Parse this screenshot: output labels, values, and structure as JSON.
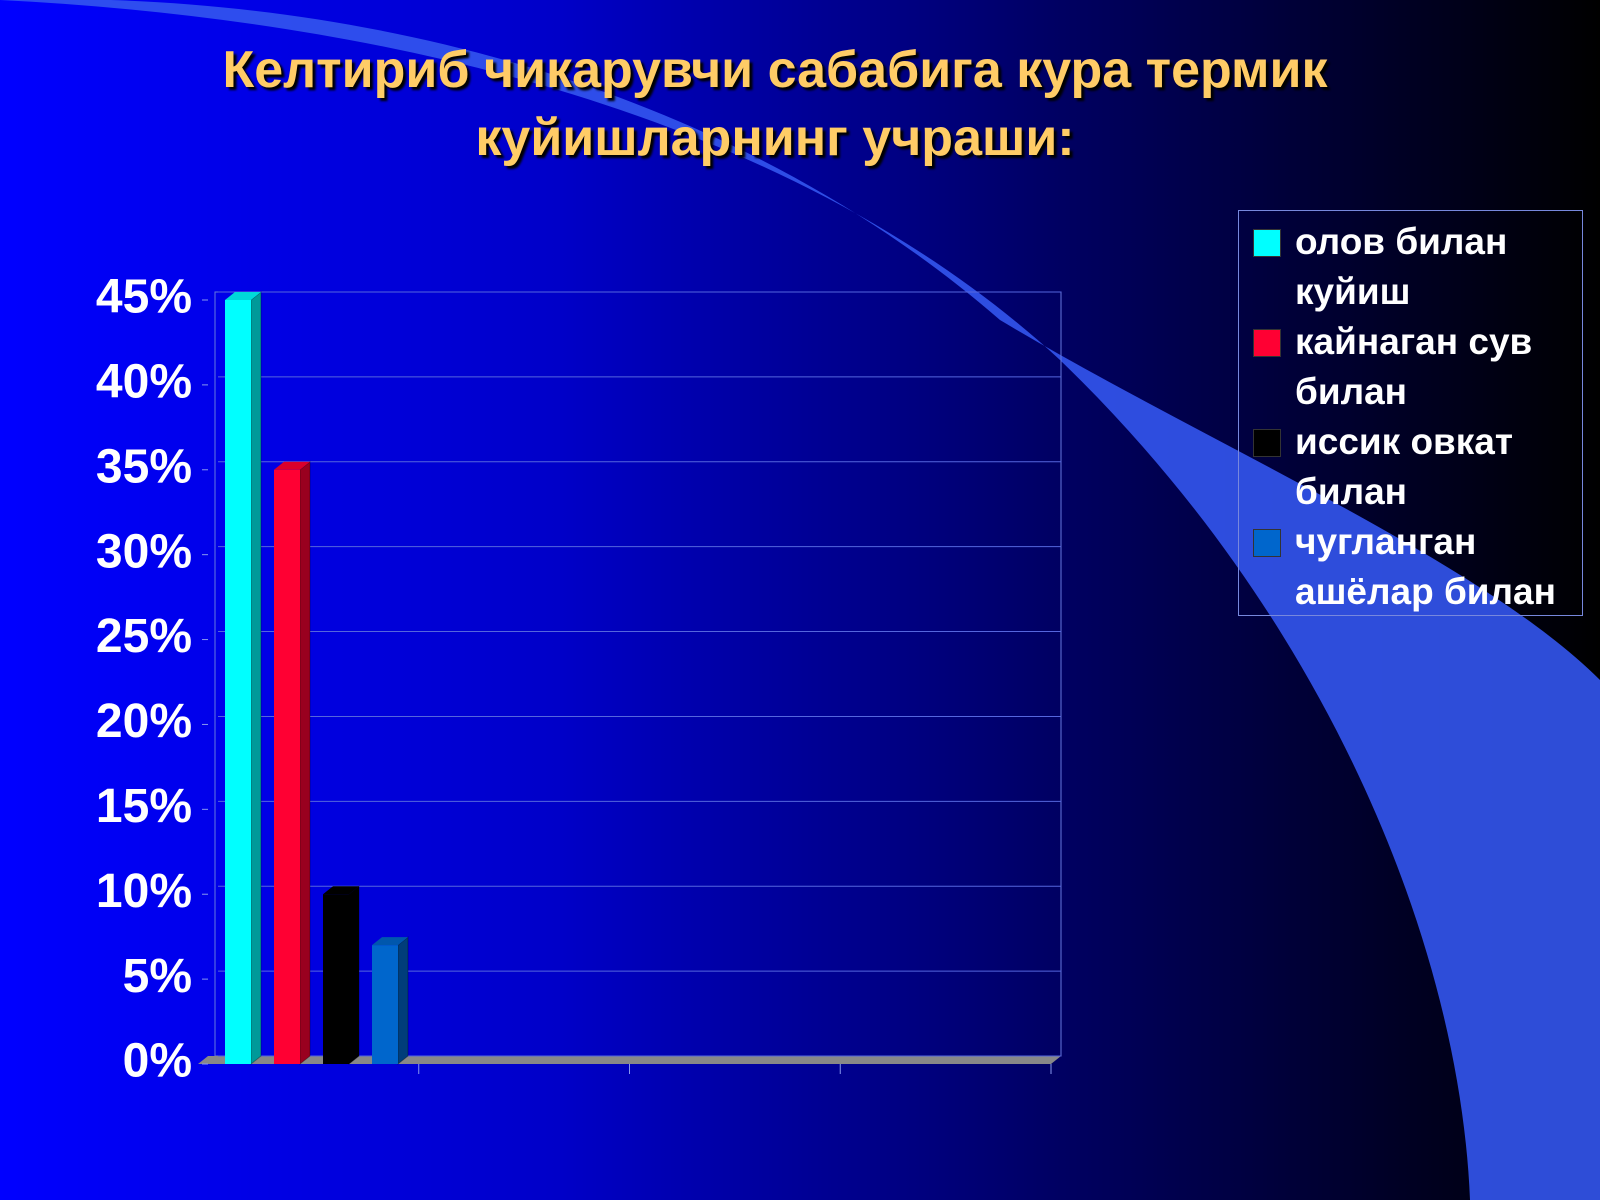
{
  "chart_data": {
    "type": "bar3d",
    "title": "Келтириб чикарувчи сабабига кура термик куйишларнинг учраши:",
    "categories": [
      null,
      null,
      null,
      null
    ],
    "series": [
      {
        "name": "олов билан куйиш",
        "color": "#00ffff",
        "values": [
          45,
          null,
          null,
          null
        ]
      },
      {
        "name": "кайнаган сув билан",
        "color": "#ff0033",
        "values": [
          35,
          null,
          null,
          null
        ]
      },
      {
        "name": "иссик овкат билан",
        "color": "#000000",
        "values": [
          10,
          null,
          null,
          null
        ]
      },
      {
        "name": "чугланган ашёлар билан",
        "color": "#0066cc",
        "values": [
          7,
          null,
          null,
          null
        ]
      }
    ],
    "ylim": [
      0,
      45
    ],
    "yticks": [
      {
        "value": 0,
        "label": "0%"
      },
      {
        "value": 5,
        "label": "5%"
      },
      {
        "value": 10,
        "label": "10%"
      },
      {
        "value": 15,
        "label": "15%"
      },
      {
        "value": 20,
        "label": "20%"
      },
      {
        "value": 25,
        "label": "25%"
      },
      {
        "value": 30,
        "label": "30%"
      },
      {
        "value": 35,
        "label": "35%"
      },
      {
        "value": 40,
        "label": "40%"
      },
      {
        "value": 45,
        "label": "45%"
      }
    ],
    "grid": true,
    "legend": "right"
  }
}
